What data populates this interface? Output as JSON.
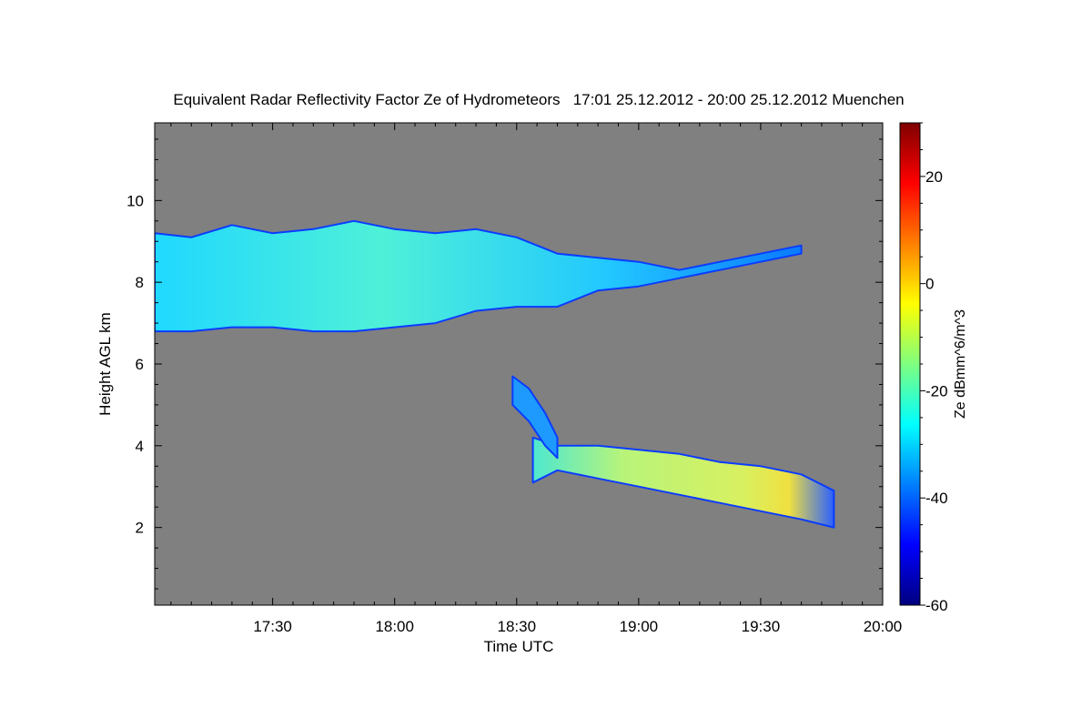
{
  "chart_data": {
    "type": "heatmap",
    "title": "Equivalent Radar Reflectivity Factor Ze of Hydrometeors   17:01 25.12.2012 - 20:00 25.12.2012 Muenchen",
    "xlabel": "Time UTC",
    "ylabel": "Height AGL km",
    "colorbar_label": "Ze dBmm^6/m^3",
    "x_range": [
      "17:01",
      "20:00"
    ],
    "xlim_minutes_after_17_00": [
      1,
      180
    ],
    "x_tick_labels": [
      "17:30",
      "18:00",
      "18:30",
      "19:00",
      "19:30",
      "20:00"
    ],
    "x_tick_values": [
      30,
      60,
      90,
      120,
      150,
      180
    ],
    "ylim": [
      0.1,
      11.9
    ],
    "y_ticks": [
      2,
      4,
      6,
      8,
      10
    ],
    "colorbar_range": [
      -60,
      30
    ],
    "colorbar_ticks": [
      -60,
      -40,
      -20,
      0,
      20
    ],
    "colormap": [
      "#00007f",
      "#0000ff",
      "#007fff",
      "#00ffff",
      "#7fff7f",
      "#ffff00",
      "#ff7f00",
      "#ff0000",
      "#7f0000"
    ],
    "no_data_color": "#808080",
    "features": [
      {
        "name": "upper cloud layer",
        "x_minutes": [
          1,
          10,
          20,
          30,
          40,
          50,
          60,
          70,
          80,
          90,
          100,
          110,
          120,
          130,
          140,
          150,
          160
        ],
        "top_km": [
          9.2,
          9.1,
          9.4,
          9.2,
          9.3,
          9.5,
          9.3,
          9.2,
          9.3,
          9.1,
          8.7,
          8.6,
          8.5,
          8.3,
          8.5,
          8.7,
          8.9
        ],
        "base_km": [
          6.8,
          6.8,
          6.9,
          6.9,
          6.8,
          6.8,
          6.9,
          7.0,
          7.3,
          7.4,
          7.4,
          7.8,
          7.9,
          8.1,
          8.3,
          8.5,
          8.7
        ],
        "typical_ze_dbz": -28
      },
      {
        "name": "lower precipitation echo",
        "x_minutes": [
          94,
          100,
          110,
          120,
          130,
          140,
          150,
          160,
          168
        ],
        "top_km": [
          4.2,
          4.0,
          4.0,
          3.9,
          3.8,
          3.6,
          3.5,
          3.3,
          2.9
        ],
        "base_km": [
          3.1,
          3.4,
          3.2,
          3.0,
          2.8,
          2.6,
          2.4,
          2.2,
          2.0
        ],
        "typical_ze_dbz": -15,
        "max_ze_dbz": -5
      },
      {
        "name": "fall streak",
        "x_minutes": [
          89,
          93,
          97,
          100
        ],
        "top_km": [
          5.7,
          5.4,
          4.8,
          4.2
        ],
        "base_km": [
          5.0,
          4.6,
          4.0,
          3.7
        ],
        "typical_ze_dbz": -38
      }
    ],
    "grid": false,
    "legend": "colorbar-right"
  }
}
